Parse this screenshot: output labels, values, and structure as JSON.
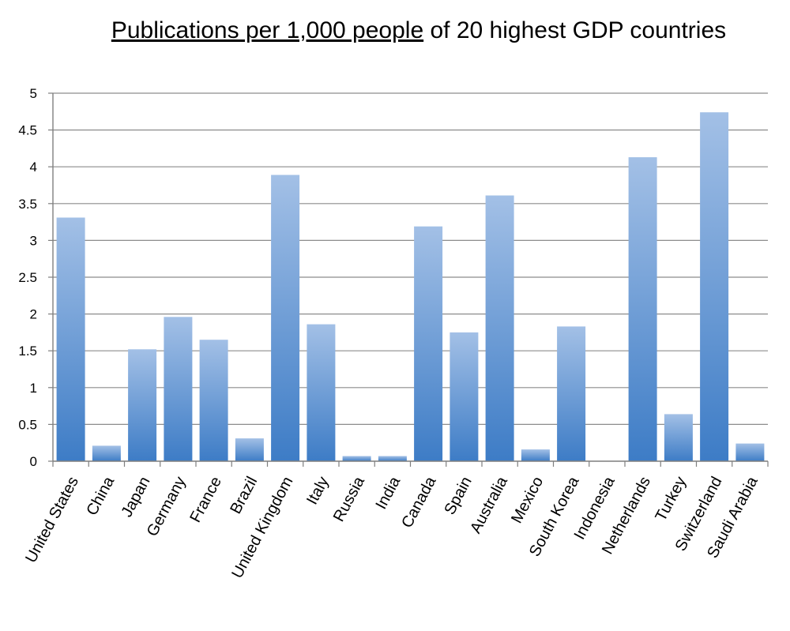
{
  "chart_data": {
    "type": "bar",
    "title": {
      "underlined": "Publications per 1,000 people",
      "rest": " of 20 highest GDP countries"
    },
    "xlabel": "",
    "ylabel": "",
    "ylim": [
      0,
      5
    ],
    "y_ticks": [
      "0",
      "0.5",
      "1",
      "1.5",
      "2",
      "2.5",
      "3",
      "3.5",
      "4",
      "4.5",
      "5"
    ],
    "grid": true,
    "legend": "none",
    "categories": [
      "United States",
      "China",
      "Japan",
      "Germany",
      "France",
      "Brazil",
      "United Kingdom",
      "Italy",
      "Russia",
      "India",
      "Canada",
      "Spain",
      "Australia",
      "Mexico",
      "South Korea",
      "Indonesia",
      "Netherlands",
      "Turkey",
      "Switzerland",
      "Saudi Arabia"
    ],
    "values": [
      3.31,
      0.21,
      1.52,
      1.96,
      1.65,
      0.31,
      3.89,
      1.86,
      0.07,
      0.07,
      3.19,
      1.75,
      3.61,
      0.16,
      1.83,
      0.0,
      4.13,
      0.64,
      4.74,
      0.24
    ],
    "colors": {
      "bar_top": "#a3c0e6",
      "bar_bottom": "#3d7cc6",
      "grid": "#8c8c8c",
      "axis": "#7f7f7f"
    }
  }
}
